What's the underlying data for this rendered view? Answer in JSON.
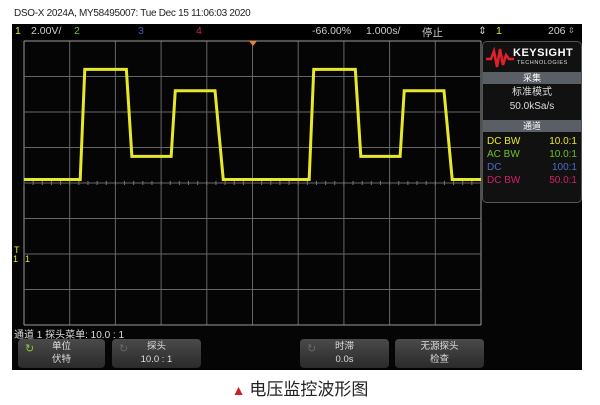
{
  "header": {
    "title": "DSO-X 2024A, MY58495007: Tue Dec 15 11:06:03 2020"
  },
  "topbar": {
    "ch1": "1",
    "ch1_scale": "2.00V/",
    "ch2": "2",
    "ch3": "3",
    "ch4": "4",
    "trigger_pos": "-66.00%",
    "timebase": "1.000s/",
    "run_state": "停止",
    "trigger_icon": "trigger-edge-icon",
    "trigger_source": "1",
    "trigger_level": "206",
    "trigger_level_icon": "trigger-level-icon"
  },
  "colors": {
    "ch1": "#e8e82a",
    "ch2": "#6ec02a",
    "ch3": "#3a5fb0",
    "ch4": "#d0206a",
    "trigger_marker": "#f08020"
  },
  "panel": {
    "brand": "KEYSIGHT",
    "brand_sub": "TECHNOLOGIES",
    "acq_title": "采集",
    "acq_mode": "标准模式",
    "sample_rate": "50.0kSa/s",
    "chan_title": "通道",
    "channels": [
      {
        "coupling": "DC BW",
        "probe": "10.0:1"
      },
      {
        "coupling": "AC BW",
        "probe": "10.0:1"
      },
      {
        "coupling": "DC",
        "probe": "100:1"
      },
      {
        "coupling": "DC BW",
        "probe": "50.0:1"
      }
    ]
  },
  "status": "通道 1 探头菜单: 10.0 : 1",
  "softkeys": [
    {
      "label": "单位",
      "value": "伏特"
    },
    {
      "label": "探头",
      "value": "10.0 : 1"
    },
    {
      "label": "时滞",
      "value": "0.0s"
    },
    {
      "label": "无源探头",
      "value": "检查"
    }
  ],
  "markers": {
    "ground": "1",
    "trigger": "T"
  },
  "caption": "电压监控波形图",
  "chart_data": {
    "type": "line",
    "grid": true,
    "volts_per_div": 2.0,
    "seconds_per_div": 1.0,
    "xlim": [
      0,
      10
    ],
    "ylim": [
      -7,
      9
    ],
    "series": [
      {
        "channel": "1",
        "t": [
          0,
          1.23,
          1.33,
          2.24,
          2.36,
          3.22,
          3.31,
          4.18,
          4.36,
          6.24,
          6.34,
          7.25,
          7.37,
          8.23,
          8.32,
          9.19,
          9.37,
          10
        ],
        "v": [
          1.2,
          1.2,
          7.4,
          7.4,
          2.5,
          2.5,
          6.2,
          6.2,
          1.2,
          1.2,
          7.4,
          7.4,
          2.5,
          2.5,
          6.2,
          6.2,
          1.2,
          1.2
        ]
      }
    ]
  }
}
